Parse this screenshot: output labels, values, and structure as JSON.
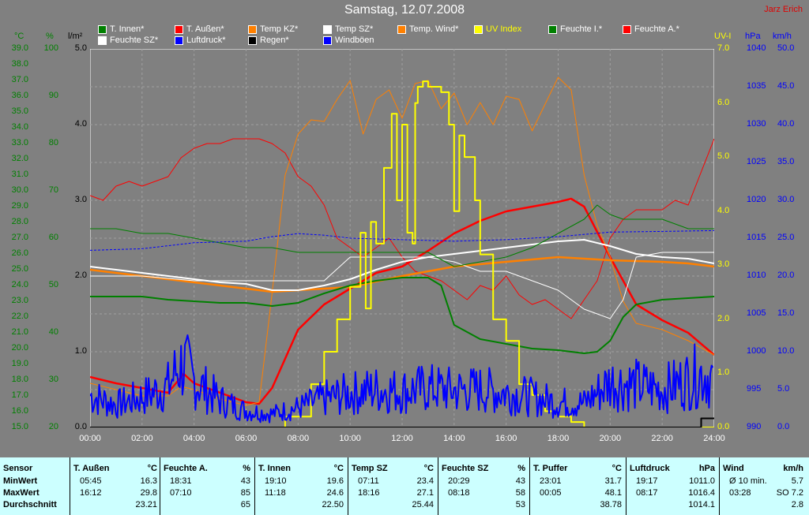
{
  "title": "Samstag, 12.07.2008",
  "author": "Jarz Erich",
  "axis_units": {
    "temp": "°C",
    "pct": "%",
    "rain": "l/m²",
    "uv": "UV-I",
    "pressure": "hPa",
    "wind": "km/h"
  },
  "legend": [
    {
      "label": "T. Innen*",
      "color": "#008000"
    },
    {
      "label": "T. Außen*",
      "color": "#ff0000"
    },
    {
      "label": "Temp KZ*",
      "color": "#ff8000"
    },
    {
      "label": "Temp SZ*",
      "color": "#ffffff"
    },
    {
      "label": "Temp. Wind*",
      "color": "#ff8000"
    },
    {
      "label": "UV Index",
      "color": "#ffff00"
    },
    {
      "label": "Feuchte I.*",
      "color": "#008000"
    },
    {
      "label": "Feuchte A.*",
      "color": "#ff0000"
    },
    {
      "label": "Feuchte SZ*",
      "color": "#ffffff"
    },
    {
      "label": "Luftdruck*",
      "color": "#0000ff"
    },
    {
      "label": "Regen*",
      "color": "#000000"
    },
    {
      "label": "Windböen",
      "color": "#0000ff"
    }
  ],
  "chart_data": {
    "type": "line",
    "x_ticks": [
      "00:00",
      "02:00",
      "04:00",
      "06:00",
      "08:00",
      "10:00",
      "12:00",
      "14:00",
      "16:00",
      "18:00",
      "20:00",
      "22:00",
      "24:00"
    ],
    "temp_ticks": [
      "39.0",
      "38.0",
      "37.0",
      "36.0",
      "35.0",
      "34.0",
      "33.0",
      "32.0",
      "31.0",
      "30.0",
      "29.0",
      "28.0",
      "27.0",
      "26.0",
      "25.0",
      "24.0",
      "23.0",
      "22.0",
      "21.0",
      "20.0",
      "19.0",
      "18.0",
      "17.0",
      "16.0",
      "15.0"
    ],
    "pct_ticks": [
      "100",
      "90",
      "80",
      "70",
      "60",
      "50",
      "40",
      "30",
      "20"
    ],
    "rain_ticks": [
      "5.0",
      "4.0",
      "3.0",
      "2.0",
      "1.0",
      "0.0"
    ],
    "uv_ticks": [
      "7.0",
      "6.0",
      "5.0",
      "4.0",
      "3.0",
      "2.0",
      "1.0",
      "0.0"
    ],
    "pressure_ticks": [
      "1040",
      "1035",
      "1030",
      "1025",
      "1020",
      "1015",
      "1010",
      "1005",
      "1000",
      "995",
      "990"
    ],
    "wind_ticks": [
      "50.0",
      "45.0",
      "40.0",
      "35.0",
      "30.0",
      "25.0",
      "20.0",
      "15.0",
      "10.0",
      "5.0",
      "0.0"
    ],
    "ylim_temp": [
      15,
      39
    ],
    "ylim_pct": [
      20,
      100
    ],
    "ylim_uv": [
      0,
      7
    ],
    "ylim_pressure": [
      990,
      1040
    ],
    "ylim_wind": [
      0,
      50
    ],
    "series": [
      {
        "name": "T. Außen*",
        "axis": "temp",
        "color": "#ff0000",
        "width": 2.5,
        "x": [
          0,
          1,
          2,
          3,
          3.6,
          4,
          5,
          6,
          6.5,
          7,
          8,
          9,
          10,
          11,
          12,
          13,
          14,
          15,
          16,
          17,
          18,
          18.5,
          19,
          20,
          21,
          22,
          23,
          24
        ],
        "y": [
          18.2,
          17.8,
          17.5,
          17.2,
          18.4,
          17.8,
          17.2,
          16.6,
          16.5,
          17.5,
          21.2,
          22.8,
          23.8,
          24.8,
          25.2,
          26.2,
          27.3,
          28.1,
          28.7,
          29.0,
          29.3,
          29.5,
          29.0,
          25.8,
          22.8,
          21.8,
          21.0,
          19.6
        ]
      },
      {
        "name": "Feuchte A.*",
        "axis": "pct",
        "color": "#ff0000",
        "width": 1,
        "x": [
          0,
          0.5,
          1,
          1.5,
          2,
          2.5,
          3,
          3.5,
          4,
          4.5,
          5,
          5.5,
          6,
          6.5,
          7,
          7.5,
          8,
          8.5,
          9,
          9.5,
          10,
          10.5,
          11,
          11.5,
          12,
          12.5,
          13,
          13.5,
          14,
          14.5,
          15,
          15.5,
          16,
          16.5,
          17,
          17.5,
          18,
          18.5,
          19,
          19.5,
          20,
          20.5,
          21,
          21.5,
          22,
          22.5,
          23,
          23.5,
          24
        ],
        "y": [
          69,
          68,
          71,
          72,
          71,
          72,
          73,
          77,
          79,
          80,
          80,
          81,
          81,
          81,
          80,
          78,
          73,
          71,
          67,
          60,
          58,
          56,
          58,
          60,
          56,
          53,
          52,
          51,
          49,
          47,
          50,
          49,
          52,
          48,
          46,
          47,
          45,
          43,
          47,
          51,
          60,
          64,
          66,
          66,
          66,
          68,
          67,
          74,
          81
        ]
      },
      {
        "name": "Temp KZ*",
        "axis": "temp",
        "color": "#ff8000",
        "width": 1,
        "x": [
          0,
          1,
          2,
          3,
          3.5,
          4,
          5,
          6,
          6.5,
          7,
          7.5,
          8,
          8.5,
          9,
          9.5,
          10,
          10.5,
          11,
          11.5,
          12,
          12.5,
          13,
          13.5,
          14,
          14.5,
          15,
          15.5,
          16,
          16.5,
          17,
          17.5,
          18,
          18.5,
          19,
          19.5,
          20,
          20.5,
          21,
          22,
          23,
          24
        ],
        "y": [
          17.8,
          17.4,
          17.0,
          17.0,
          17.6,
          17.4,
          16.8,
          16.4,
          16.6,
          23.5,
          31.0,
          33.6,
          34.5,
          34.4,
          35.8,
          37.0,
          33.6,
          35.8,
          36.4,
          34.6,
          36.8,
          37.0,
          35.2,
          36.2,
          34.2,
          35.6,
          34.2,
          36.0,
          35.8,
          33.8,
          35.5,
          37.2,
          36.4,
          31.0,
          27.8,
          25.8,
          23.0,
          21.6,
          21.2,
          20.5,
          19.6
        ]
      },
      {
        "name": "Temp. Wind*",
        "axis": "temp",
        "color": "#ff8000",
        "width": 2.5,
        "x": [
          0,
          2,
          4,
          6,
          7,
          8,
          10,
          12,
          14,
          16,
          18,
          20,
          22,
          23,
          24
        ],
        "y": [
          25.0,
          24.6,
          24.2,
          23.8,
          23.6,
          23.7,
          23.9,
          24.6,
          25.2,
          25.5,
          25.8,
          25.6,
          25.5,
          25.4,
          25.2
        ]
      },
      {
        "name": "Temp SZ*",
        "axis": "temp",
        "color": "#ffffff",
        "width": 2,
        "x": [
          0,
          1,
          2,
          3,
          4,
          5,
          6,
          7,
          8,
          9,
          10,
          11,
          12,
          13,
          14,
          15,
          16,
          17,
          18,
          19,
          20,
          21,
          22,
          23,
          24
        ],
        "y": [
          25.2,
          25.0,
          24.8,
          24.6,
          24.4,
          24.2,
          24.1,
          23.7,
          23.7,
          24.0,
          24.4,
          25.0,
          25.5,
          25.8,
          26.0,
          26.2,
          26.4,
          26.6,
          26.8,
          26.9,
          26.5,
          26.0,
          25.8,
          25.7,
          25.4
        ]
      },
      {
        "name": "Feuchte SZ*",
        "axis": "pct",
        "color": "#ffffff",
        "width": 1,
        "x": [
          0,
          2,
          4,
          6,
          7,
          8,
          9,
          10,
          11,
          12,
          13,
          14,
          15,
          16,
          17,
          18,
          19,
          19.5,
          20,
          20.5,
          21,
          22,
          23,
          24
        ],
        "y": [
          52,
          52,
          51,
          51,
          51,
          51,
          51,
          56,
          56,
          56,
          56,
          55,
          53,
          53,
          51,
          49,
          45,
          44,
          43,
          47,
          56,
          57,
          57,
          57
        ]
      },
      {
        "name": "T. Innen*",
        "axis": "temp",
        "color": "#008000",
        "width": 2,
        "x": [
          0,
          1,
          2,
          3,
          4,
          5,
          6,
          7,
          8,
          9,
          10,
          11,
          12,
          13,
          13.5,
          14,
          15,
          16,
          17,
          18,
          19,
          19.5,
          20,
          20.5,
          21,
          22,
          23,
          24
        ],
        "y": [
          23.3,
          23.3,
          23.3,
          23.1,
          23.0,
          22.9,
          22.9,
          22.7,
          22.9,
          23.5,
          24.0,
          24.3,
          24.5,
          24.5,
          24.0,
          21.5,
          20.6,
          20.3,
          20.0,
          19.9,
          19.7,
          19.8,
          20.5,
          22.0,
          22.8,
          23.1,
          23.2,
          23.3
        ]
      },
      {
        "name": "Feuchte I.*",
        "axis": "pct",
        "color": "#008000",
        "width": 1,
        "x": [
          0,
          1,
          2,
          3,
          4,
          5,
          6,
          7,
          8,
          9,
          10,
          11,
          12,
          13,
          14,
          15,
          16,
          17,
          18,
          19,
          19.5,
          20,
          20.5,
          21,
          22,
          23,
          24
        ],
        "y": [
          62,
          62,
          61,
          61,
          60,
          59,
          58,
          58,
          57,
          57,
          57,
          57,
          57,
          57,
          54,
          55,
          56,
          58,
          61,
          64,
          67,
          65,
          64,
          64,
          64,
          62,
          62
        ]
      },
      {
        "name": "UV Index",
        "axis": "uv",
        "color": "#ffff00",
        "width": 2,
        "step": true,
        "x": [
          0,
          7.5,
          8.5,
          9,
          9.5,
          10,
          10.4,
          10.6,
          10.8,
          11,
          11.3,
          11.6,
          11.8,
          12,
          12.2,
          12.4,
          12.5,
          12.6,
          12.8,
          13,
          13.5,
          13.8,
          14,
          14.2,
          14.4,
          14.8,
          15,
          15.5,
          16,
          16.5,
          17,
          17.5,
          18,
          18.5,
          19,
          19.5,
          24
        ],
        "y": [
          0,
          0.2,
          0.8,
          1.4,
          2.0,
          2.6,
          3.6,
          2.2,
          3.8,
          3.4,
          4.8,
          5.8,
          4.2,
          5.6,
          3.6,
          3.4,
          6.0,
          6.3,
          6.4,
          6.3,
          6.2,
          5.6,
          4.0,
          5.4,
          5.0,
          4.2,
          3.2,
          2.0,
          1.6,
          0.8,
          0.6,
          0.3,
          0.2,
          0.1,
          0,
          0,
          0
        ]
      },
      {
        "name": "Luftdruck*",
        "axis": "pressure",
        "color": "#0000ff",
        "width": 1,
        "dashed": true,
        "x": [
          0,
          2,
          4,
          6,
          7,
          8,
          9,
          10,
          12,
          14,
          16,
          18,
          20,
          22,
          24
        ],
        "y": [
          1013.4,
          1013.6,
          1014.4,
          1014.6,
          1015.2,
          1015.6,
          1015.4,
          1015.0,
          1014.8,
          1014.6,
          1014.8,
          1015.2,
          1015.8,
          1015.9,
          1016.0
        ]
      },
      {
        "name": "Regen*",
        "axis": "rain",
        "color": "#000000",
        "width": 2,
        "step": true,
        "x": [
          0,
          23.4,
          23.5,
          24
        ],
        "y": [
          0,
          0,
          0.12,
          0.12
        ]
      },
      {
        "name": "Windböen",
        "axis": "wind",
        "color": "#0000ff",
        "width": 2,
        "noisy": true,
        "x": [
          0,
          1,
          2,
          3,
          3.4,
          3.6,
          4,
          5,
          6,
          7,
          8,
          9,
          10,
          11,
          12,
          13,
          14,
          15,
          16,
          17,
          18,
          19,
          20,
          21,
          22,
          23,
          23.6,
          24
        ],
        "y": [
          4.2,
          3.0,
          4.0,
          5.4,
          8.0,
          8.4,
          6.2,
          3.6,
          2.2,
          1.8,
          2.6,
          3.8,
          4.5,
          5.0,
          4.8,
          5.2,
          4.9,
          5.0,
          4.6,
          4.0,
          3.3,
          3.2,
          6.0,
          5.6,
          5.0,
          6.3,
          7.2,
          6.2
        ]
      }
    ]
  },
  "table": {
    "sections": [
      {
        "title": "Sensor",
        "unit": "",
        "rows": [
          {
            "time": "MinWert",
            "value": ""
          },
          {
            "time": "MaxWert",
            "value": ""
          },
          {
            "time": "Durchschnitt",
            "value": ""
          }
        ]
      },
      {
        "title": "T. Außen",
        "unit": "°C",
        "rows": [
          {
            "time": "05:45",
            "value": "16.3"
          },
          {
            "time": "16:12",
            "value": "29.8"
          },
          {
            "time": "",
            "value": "23.21"
          }
        ]
      },
      {
        "title": "Feuchte A.",
        "unit": "%",
        "rows": [
          {
            "time": "18:31",
            "value": "43"
          },
          {
            "time": "07:10",
            "value": "85"
          },
          {
            "time": "",
            "value": "65"
          }
        ]
      },
      {
        "title": "T. Innen",
        "unit": "°C",
        "rows": [
          {
            "time": "19:10",
            "value": "19.6"
          },
          {
            "time": "11:18",
            "value": "24.6"
          },
          {
            "time": "",
            "value": "22.50"
          }
        ]
      },
      {
        "title": "Temp SZ",
        "unit": "°C",
        "rows": [
          {
            "time": "07:11",
            "value": "23.4"
          },
          {
            "time": "18:16",
            "value": "27.1"
          },
          {
            "time": "",
            "value": "25.44"
          }
        ]
      },
      {
        "title": "Feuchte SZ",
        "unit": "%",
        "rows": [
          {
            "time": "20:29",
            "value": "43"
          },
          {
            "time": "08:18",
            "value": "58"
          },
          {
            "time": "",
            "value": "53"
          }
        ]
      },
      {
        "title": "T. Puffer",
        "unit": "°C",
        "rows": [
          {
            "time": "23:01",
            "value": "31.7"
          },
          {
            "time": "00:05",
            "value": "48.1"
          },
          {
            "time": "",
            "value": "38.78"
          }
        ]
      },
      {
        "title": "Luftdruck",
        "unit": "hPa",
        "rows": [
          {
            "time": "19:17",
            "value": "1011.0"
          },
          {
            "time": "08:17",
            "value": "1016.4"
          },
          {
            "time": "",
            "value": "1014.1"
          }
        ]
      },
      {
        "title": "Wind",
        "unit": "km/h",
        "rows": [
          {
            "time": "Ø 10 min.",
            "value": "5.7"
          },
          {
            "time": "03:28",
            "value": "SO 7.2"
          },
          {
            "time": "",
            "value": "2.8"
          }
        ]
      }
    ]
  }
}
